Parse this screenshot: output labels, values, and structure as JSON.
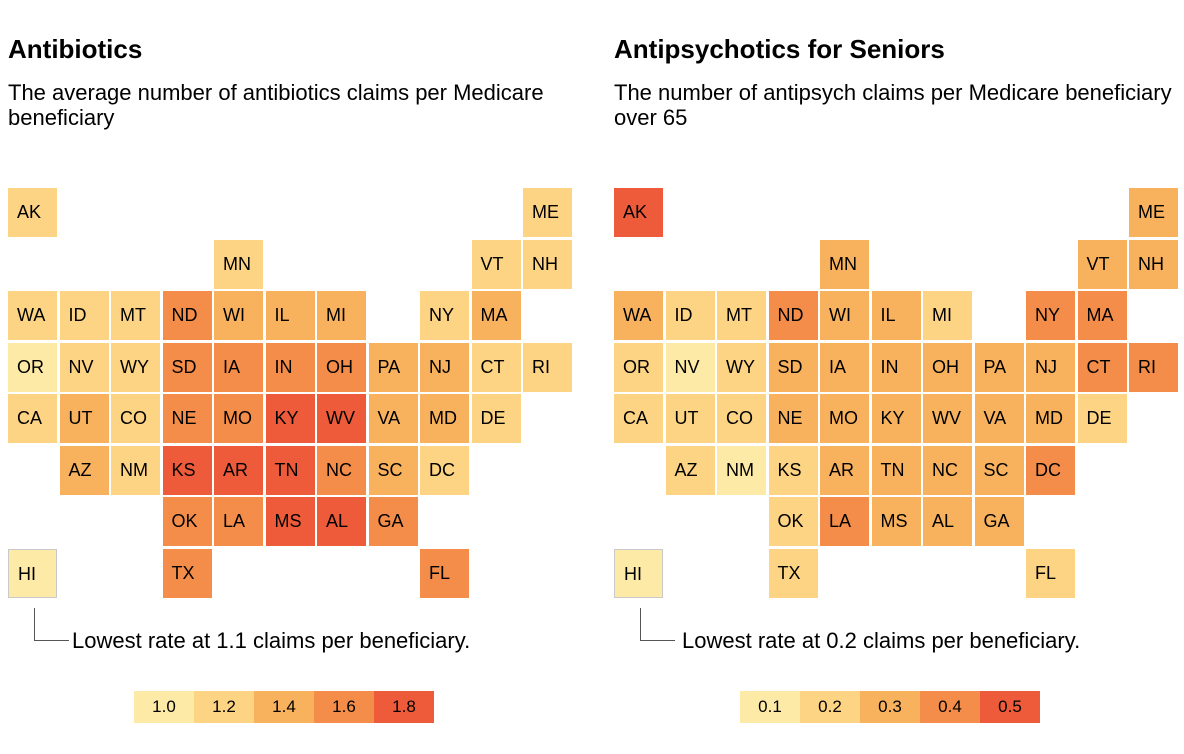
{
  "chart_data": [
    {
      "type": "heatmap",
      "title": "Antibiotics",
      "subtitle": "The average number of antibiotics claims per Medicare beneficiary",
      "annotation": "Lowest rate at 1.1 claims per beneficiary.",
      "legend": [
        "1.0",
        "1.2",
        "1.4",
        "1.6",
        "1.8"
      ],
      "colors": [
        "#fdeaa6",
        "#fcd483",
        "#f8b25e",
        "#f48d4a",
        "#ee5b3a"
      ],
      "cells": [
        {
          "state": "AK",
          "row": 0,
          "col": 0,
          "level": 1
        },
        {
          "state": "ME",
          "row": 0,
          "col": 10,
          "level": 1
        },
        {
          "state": "MN",
          "row": 1,
          "col": 4,
          "level": 1
        },
        {
          "state": "VT",
          "row": 1,
          "col": 9,
          "level": 1
        },
        {
          "state": "NH",
          "row": 1,
          "col": 10,
          "level": 1
        },
        {
          "state": "WA",
          "row": 2,
          "col": 0,
          "level": 1
        },
        {
          "state": "ID",
          "row": 2,
          "col": 1,
          "level": 1
        },
        {
          "state": "MT",
          "row": 2,
          "col": 2,
          "level": 1
        },
        {
          "state": "ND",
          "row": 2,
          "col": 3,
          "level": 3
        },
        {
          "state": "WI",
          "row": 2,
          "col": 4,
          "level": 2
        },
        {
          "state": "IL",
          "row": 2,
          "col": 5,
          "level": 2
        },
        {
          "state": "MI",
          "row": 2,
          "col": 6,
          "level": 2
        },
        {
          "state": "NY",
          "row": 2,
          "col": 8,
          "level": 1
        },
        {
          "state": "MA",
          "row": 2,
          "col": 9,
          "level": 2
        },
        {
          "state": "OR",
          "row": 3,
          "col": 0,
          "level": 0
        },
        {
          "state": "NV",
          "row": 3,
          "col": 1,
          "level": 1
        },
        {
          "state": "WY",
          "row": 3,
          "col": 2,
          "level": 1
        },
        {
          "state": "SD",
          "row": 3,
          "col": 3,
          "level": 3
        },
        {
          "state": "IA",
          "row": 3,
          "col": 4,
          "level": 3
        },
        {
          "state": "IN",
          "row": 3,
          "col": 5,
          "level": 3
        },
        {
          "state": "OH",
          "row": 3,
          "col": 6,
          "level": 3
        },
        {
          "state": "PA",
          "row": 3,
          "col": 7,
          "level": 2
        },
        {
          "state": "NJ",
          "row": 3,
          "col": 8,
          "level": 2
        },
        {
          "state": "CT",
          "row": 3,
          "col": 9,
          "level": 1
        },
        {
          "state": "RI",
          "row": 3,
          "col": 10,
          "level": 1
        },
        {
          "state": "CA",
          "row": 4,
          "col": 0,
          "level": 1
        },
        {
          "state": "UT",
          "row": 4,
          "col": 1,
          "level": 2
        },
        {
          "state": "CO",
          "row": 4,
          "col": 2,
          "level": 1
        },
        {
          "state": "NE",
          "row": 4,
          "col": 3,
          "level": 3
        },
        {
          "state": "MO",
          "row": 4,
          "col": 4,
          "level": 3
        },
        {
          "state": "KY",
          "row": 4,
          "col": 5,
          "level": 4
        },
        {
          "state": "WV",
          "row": 4,
          "col": 6,
          "level": 4
        },
        {
          "state": "VA",
          "row": 4,
          "col": 7,
          "level": 2
        },
        {
          "state": "MD",
          "row": 4,
          "col": 8,
          "level": 2
        },
        {
          "state": "DE",
          "row": 4,
          "col": 9,
          "level": 1
        },
        {
          "state": "AZ",
          "row": 5,
          "col": 1,
          "level": 2
        },
        {
          "state": "NM",
          "row": 5,
          "col": 2,
          "level": 1
        },
        {
          "state": "KS",
          "row": 5,
          "col": 3,
          "level": 4
        },
        {
          "state": "AR",
          "row": 5,
          "col": 4,
          "level": 4
        },
        {
          "state": "TN",
          "row": 5,
          "col": 5,
          "level": 4
        },
        {
          "state": "NC",
          "row": 5,
          "col": 6,
          "level": 3
        },
        {
          "state": "SC",
          "row": 5,
          "col": 7,
          "level": 2
        },
        {
          "state": "DC",
          "row": 5,
          "col": 8,
          "level": 1
        },
        {
          "state": "OK",
          "row": 6,
          "col": 3,
          "level": 3
        },
        {
          "state": "LA",
          "row": 6,
          "col": 4,
          "level": 3
        },
        {
          "state": "MS",
          "row": 6,
          "col": 5,
          "level": 4
        },
        {
          "state": "AL",
          "row": 6,
          "col": 6,
          "level": 4
        },
        {
          "state": "GA",
          "row": 6,
          "col": 7,
          "level": 3
        },
        {
          "state": "HI",
          "row": 7,
          "col": 0,
          "level": 0
        },
        {
          "state": "TX",
          "row": 7,
          "col": 3,
          "level": 3
        },
        {
          "state": "FL",
          "row": 7,
          "col": 8,
          "level": 3
        }
      ]
    },
    {
      "type": "heatmap",
      "title": "Antipsychotics for Seniors",
      "subtitle": "The number of antipsych claims per Medicare beneficiary over 65",
      "annotation": "Lowest rate at 0.2 claims per beneficiary.",
      "legend": [
        "0.1",
        "0.2",
        "0.3",
        "0.4",
        "0.5"
      ],
      "colors": [
        "#fdeaa6",
        "#fcd483",
        "#f8b25e",
        "#f48d4a",
        "#ee5b3a"
      ],
      "cells": [
        {
          "state": "AK",
          "row": 0,
          "col": 0,
          "level": 4
        },
        {
          "state": "ME",
          "row": 0,
          "col": 10,
          "level": 2
        },
        {
          "state": "MN",
          "row": 1,
          "col": 4,
          "level": 2
        },
        {
          "state": "VT",
          "row": 1,
          "col": 9,
          "level": 2
        },
        {
          "state": "NH",
          "row": 1,
          "col": 10,
          "level": 2
        },
        {
          "state": "WA",
          "row": 2,
          "col": 0,
          "level": 2
        },
        {
          "state": "ID",
          "row": 2,
          "col": 1,
          "level": 1
        },
        {
          "state": "MT",
          "row": 2,
          "col": 2,
          "level": 1
        },
        {
          "state": "ND",
          "row": 2,
          "col": 3,
          "level": 3
        },
        {
          "state": "WI",
          "row": 2,
          "col": 4,
          "level": 2
        },
        {
          "state": "IL",
          "row": 2,
          "col": 5,
          "level": 2
        },
        {
          "state": "MI",
          "row": 2,
          "col": 6,
          "level": 1
        },
        {
          "state": "NY",
          "row": 2,
          "col": 8,
          "level": 3
        },
        {
          "state": "MA",
          "row": 2,
          "col": 9,
          "level": 3
        },
        {
          "state": "OR",
          "row": 3,
          "col": 0,
          "level": 1
        },
        {
          "state": "NV",
          "row": 3,
          "col": 1,
          "level": 0
        },
        {
          "state": "WY",
          "row": 3,
          "col": 2,
          "level": 1
        },
        {
          "state": "SD",
          "row": 3,
          "col": 3,
          "level": 2
        },
        {
          "state": "IA",
          "row": 3,
          "col": 4,
          "level": 2
        },
        {
          "state": "IN",
          "row": 3,
          "col": 5,
          "level": 2
        },
        {
          "state": "OH",
          "row": 3,
          "col": 6,
          "level": 2
        },
        {
          "state": "PA",
          "row": 3,
          "col": 7,
          "level": 2
        },
        {
          "state": "NJ",
          "row": 3,
          "col": 8,
          "level": 2
        },
        {
          "state": "CT",
          "row": 3,
          "col": 9,
          "level": 3
        },
        {
          "state": "RI",
          "row": 3,
          "col": 10,
          "level": 3
        },
        {
          "state": "CA",
          "row": 4,
          "col": 0,
          "level": 1
        },
        {
          "state": "UT",
          "row": 4,
          "col": 1,
          "level": 1
        },
        {
          "state": "CO",
          "row": 4,
          "col": 2,
          "level": 1
        },
        {
          "state": "NE",
          "row": 4,
          "col": 3,
          "level": 2
        },
        {
          "state": "MO",
          "row": 4,
          "col": 4,
          "level": 2
        },
        {
          "state": "KY",
          "row": 4,
          "col": 5,
          "level": 2
        },
        {
          "state": "WV",
          "row": 4,
          "col": 6,
          "level": 2
        },
        {
          "state": "VA",
          "row": 4,
          "col": 7,
          "level": 2
        },
        {
          "state": "MD",
          "row": 4,
          "col": 8,
          "level": 2
        },
        {
          "state": "DE",
          "row": 4,
          "col": 9,
          "level": 1
        },
        {
          "state": "AZ",
          "row": 5,
          "col": 1,
          "level": 1
        },
        {
          "state": "NM",
          "row": 5,
          "col": 2,
          "level": 0
        },
        {
          "state": "KS",
          "row": 5,
          "col": 3,
          "level": 1
        },
        {
          "state": "AR",
          "row": 5,
          "col": 4,
          "level": 2
        },
        {
          "state": "TN",
          "row": 5,
          "col": 5,
          "level": 2
        },
        {
          "state": "NC",
          "row": 5,
          "col": 6,
          "level": 2
        },
        {
          "state": "SC",
          "row": 5,
          "col": 7,
          "level": 2
        },
        {
          "state": "DC",
          "row": 5,
          "col": 8,
          "level": 3
        },
        {
          "state": "OK",
          "row": 6,
          "col": 3,
          "level": 1
        },
        {
          "state": "LA",
          "row": 6,
          "col": 4,
          "level": 3
        },
        {
          "state": "MS",
          "row": 6,
          "col": 5,
          "level": 2
        },
        {
          "state": "AL",
          "row": 6,
          "col": 6,
          "level": 2
        },
        {
          "state": "GA",
          "row": 6,
          "col": 7,
          "level": 2
        },
        {
          "state": "HI",
          "row": 7,
          "col": 0,
          "level": 0
        },
        {
          "state": "TX",
          "row": 7,
          "col": 3,
          "level": 1
        },
        {
          "state": "FL",
          "row": 7,
          "col": 8,
          "level": 1
        }
      ]
    }
  ]
}
